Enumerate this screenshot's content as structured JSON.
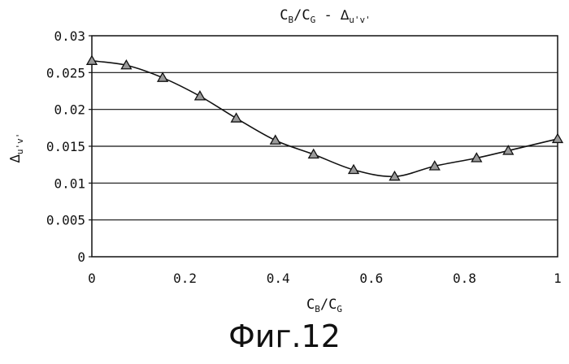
{
  "chart_data": {
    "type": "line",
    "title": {
      "a": "C",
      "a_sub": "B",
      "b": "/C",
      "b_sub": "G",
      "c": " - ∆",
      "c_sub": "u'v'"
    },
    "xlabel": {
      "a": "C",
      "a_sub": "B",
      "b": "/C",
      "b_sub": "G"
    },
    "ylabel": {
      "a": "∆",
      "a_sub": "u'v'"
    },
    "xlim": [
      0,
      1
    ],
    "ylim": [
      0,
      0.03
    ],
    "x_ticks": [
      "0",
      "0.2",
      "0.4",
      "0.6",
      "0.8",
      "1"
    ],
    "y_ticks": [
      "0",
      "0.005",
      "0.01",
      "0.015",
      "0.02",
      "0.025",
      "0.03"
    ],
    "grid": "horizontal",
    "marker": "triangle",
    "series": [
      {
        "x": [
          0.0,
          0.074,
          0.152,
          0.232,
          0.31,
          0.394,
          0.476,
          0.562,
          0.65,
          0.736,
          0.826,
          0.894,
          1.0
        ],
        "y": [
          0.0266,
          0.026,
          0.0243,
          0.0218,
          0.0188,
          0.0158,
          0.0139,
          0.0118,
          0.0109,
          0.0123,
          0.0134,
          0.0144,
          0.016
        ]
      }
    ]
  },
  "caption": "Фиг.12"
}
